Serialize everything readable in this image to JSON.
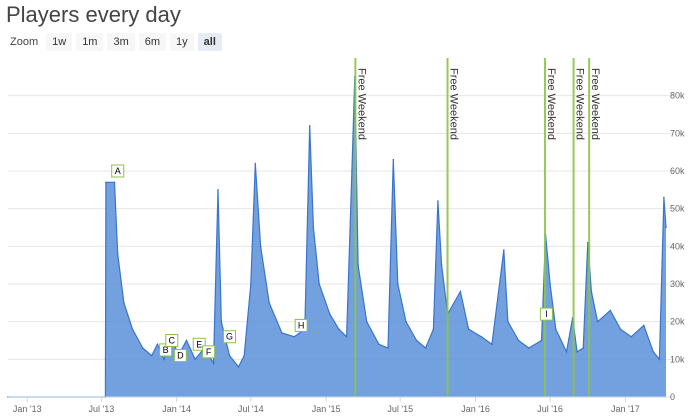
{
  "title": "Players every day",
  "zoom": {
    "label": "Zoom",
    "buttons": [
      "1w",
      "1m",
      "3m",
      "6m",
      "1y",
      "all"
    ],
    "active": "all"
  },
  "colors": {
    "area": "#5b8fd8",
    "line": "#3a74cc",
    "band": "#8bc34a",
    "flag_border": "#8bc34a"
  },
  "chart_data": {
    "type": "area",
    "title": "Players every day",
    "x_range": [
      "2012-11-15",
      "2017-04-15"
    ],
    "ylim": [
      0,
      90000
    ],
    "grid": true,
    "yticks": [
      0,
      10000,
      20000,
      30000,
      40000,
      50000,
      60000,
      70000,
      80000
    ],
    "ytick_labels": [
      "0",
      "10k",
      "20k",
      "30k",
      "40k",
      "50k",
      "60k",
      "70k",
      "80k"
    ],
    "xticks": [
      "2013-01-01",
      "2013-07-01",
      "2014-01-01",
      "2014-07-01",
      "2015-01-01",
      "2015-07-01",
      "2016-01-01",
      "2016-07-01",
      "2017-01-01"
    ],
    "xtick_labels": [
      "Jan '13",
      "Jul '13",
      "Jan '14",
      "Jul '14",
      "Jan '15",
      "Jul '15",
      "Jan '16",
      "Jul '16",
      "Jan '17"
    ],
    "series": [
      {
        "points": [
          [
            "2012-11-15",
            0
          ],
          [
            "2013-07-11",
            0
          ],
          [
            "2013-07-12",
            57000
          ],
          [
            "2013-08-02",
            57000
          ],
          [
            "2013-08-10",
            38000
          ],
          [
            "2013-08-25",
            25000
          ],
          [
            "2013-09-15",
            18000
          ],
          [
            "2013-10-10",
            13000
          ],
          [
            "2013-11-01",
            11000
          ],
          [
            "2013-11-15",
            14000
          ],
          [
            "2013-12-01",
            10000
          ],
          [
            "2013-12-20",
            16000
          ],
          [
            "2014-01-05",
            11000
          ],
          [
            "2014-01-25",
            15000
          ],
          [
            "2014-02-15",
            10000
          ],
          [
            "2014-03-10",
            13000
          ],
          [
            "2014-04-01",
            9000
          ],
          [
            "2014-04-12",
            55000
          ],
          [
            "2014-04-20",
            20000
          ],
          [
            "2014-05-10",
            11000
          ],
          [
            "2014-06-01",
            8000
          ],
          [
            "2014-06-15",
            11000
          ],
          [
            "2014-07-01",
            30000
          ],
          [
            "2014-07-12",
            62000
          ],
          [
            "2014-07-25",
            40000
          ],
          [
            "2014-08-15",
            25000
          ],
          [
            "2014-09-15",
            17000
          ],
          [
            "2014-10-15",
            16000
          ],
          [
            "2014-11-10",
            18000
          ],
          [
            "2014-11-22",
            72000
          ],
          [
            "2014-12-01",
            45000
          ],
          [
            "2014-12-15",
            30000
          ],
          [
            "2015-01-10",
            22000
          ],
          [
            "2015-02-01",
            18000
          ],
          [
            "2015-02-20",
            16000
          ],
          [
            "2015-03-05",
            60000
          ],
          [
            "2015-03-12",
            85000
          ],
          [
            "2015-03-20",
            35000
          ],
          [
            "2015-04-10",
            20000
          ],
          [
            "2015-05-10",
            14000
          ],
          [
            "2015-06-01",
            13000
          ],
          [
            "2015-06-14",
            63000
          ],
          [
            "2015-06-25",
            30000
          ],
          [
            "2015-07-15",
            20000
          ],
          [
            "2015-08-10",
            15000
          ],
          [
            "2015-09-01",
            13000
          ],
          [
            "2015-09-20",
            18000
          ],
          [
            "2015-10-01",
            52000
          ],
          [
            "2015-10-10",
            35000
          ],
          [
            "2015-10-25",
            22000
          ],
          [
            "2015-11-25",
            28000
          ],
          [
            "2015-12-15",
            18000
          ],
          [
            "2016-01-15",
            16000
          ],
          [
            "2016-02-10",
            14000
          ],
          [
            "2016-03-10",
            39000
          ],
          [
            "2016-03-20",
            20000
          ],
          [
            "2016-04-15",
            15000
          ],
          [
            "2016-05-10",
            13000
          ],
          [
            "2016-06-10",
            15000
          ],
          [
            "2016-06-20",
            43000
          ],
          [
            "2016-07-01",
            30000
          ],
          [
            "2016-07-15",
            18000
          ],
          [
            "2016-08-10",
            12000
          ],
          [
            "2016-08-25",
            21000
          ],
          [
            "2016-09-05",
            12000
          ],
          [
            "2016-09-20",
            13000
          ],
          [
            "2016-10-01",
            41000
          ],
          [
            "2016-10-10",
            28000
          ],
          [
            "2016-10-25",
            20000
          ],
          [
            "2016-11-25",
            23000
          ],
          [
            "2016-12-20",
            18000
          ],
          [
            "2017-01-15",
            16000
          ],
          [
            "2017-02-15",
            19000
          ],
          [
            "2017-03-10",
            12000
          ],
          [
            "2017-03-25",
            10000
          ],
          [
            "2017-04-05",
            53000
          ],
          [
            "2017-04-10",
            45000
          ]
        ]
      }
    ],
    "bands": [
      {
        "label": "Free Weekend",
        "from": "2015-03-11",
        "to": "2015-03-12"
      },
      {
        "label": "Free Weekend",
        "from": "2015-10-22",
        "to": "2015-10-27"
      },
      {
        "label": "Free Weekend",
        "from": "2016-06-16",
        "to": "2016-06-21"
      },
      {
        "label": "Free Weekend",
        "from": "2016-08-25",
        "to": "2016-08-26"
      },
      {
        "label": "Free Weekend",
        "from": "2016-10-02",
        "to": "2016-10-05"
      }
    ],
    "flags": [
      {
        "label": "A",
        "x": "2013-08-10",
        "y": 60000
      },
      {
        "label": "B",
        "x": "2013-12-05",
        "y": 12500
      },
      {
        "label": "C",
        "x": "2013-12-20",
        "y": 15000
      },
      {
        "label": "D",
        "x": "2014-01-10",
        "y": 11000
      },
      {
        "label": "E",
        "x": "2014-02-25",
        "y": 14000
      },
      {
        "label": "F",
        "x": "2014-03-20",
        "y": 12000
      },
      {
        "label": "G",
        "x": "2014-05-10",
        "y": 16000
      },
      {
        "label": "H",
        "x": "2014-11-01",
        "y": 19000
      },
      {
        "label": "I",
        "x": "2016-06-22",
        "y": 22000
      }
    ]
  }
}
